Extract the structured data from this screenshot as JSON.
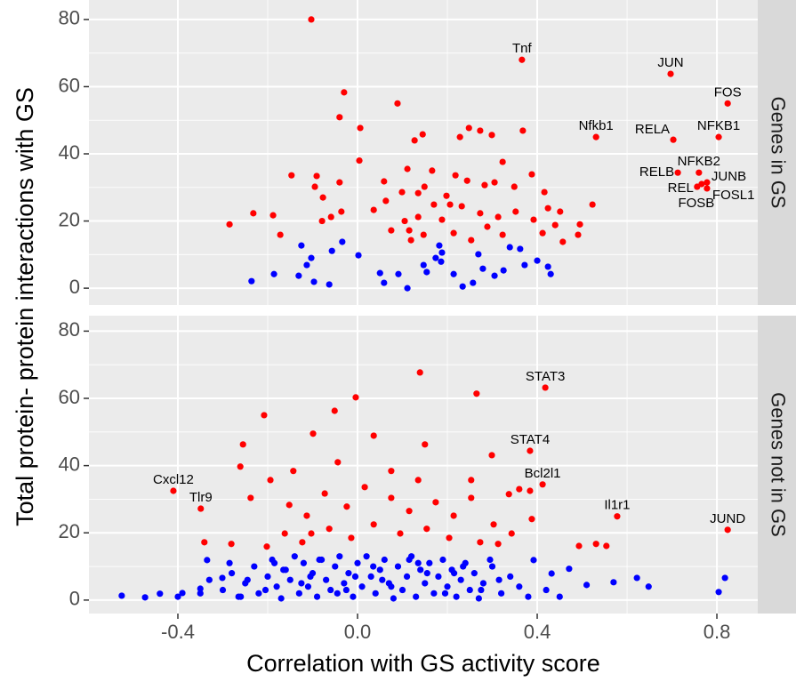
{
  "chart_data": {
    "type": "scatter",
    "xlabel": "Correlation with GS activity score",
    "ylabel": "Total protein- protein interactions with GS",
    "xlim": [
      -0.598,
      0.891
    ],
    "xticks": [
      -0.4,
      {
        "value": 0,
        "label": "0.0"
      },
      0.4,
      0.8
    ],
    "x_minor_grid": [
      -0.2,
      0.2,
      0.6
    ],
    "grid": true,
    "facets": [
      {
        "label": "Genes in GS",
        "ylim": [
          -5,
          85.8
        ],
        "yticks": [
          0,
          20,
          40,
          60,
          80
        ],
        "y_minor_grid": [
          10,
          30,
          50,
          70
        ],
        "series": [
          {
            "color": "#ff0000",
            "x": [
              0.366,
              0.697,
              0.824,
              0.531,
              0.703,
              0.804,
              0.713,
              0.76,
              0.778,
              0.756,
              0.778,
              0.766,
              -0.103,
              -0.03,
              0.089,
              -0.04,
              0.006,
              0.145,
              0.248,
              0.273,
              0.299,
              0.368,
              0.228,
              0.127,
              -0.091,
              -0.147,
              0.004,
              -0.04,
              -0.095,
              -0.232,
              -0.188,
              -0.172,
              -0.285,
              -0.077,
              -0.059,
              -0.036,
              -0.079,
              0.059,
              0.111,
              0.166,
              0.218,
              0.244,
              0.283,
              0.305,
              0.349,
              0.388,
              0.416,
              0.424,
              0.451,
              0.44,
              0.457,
              0.495,
              0.491,
              0.523,
              0.063,
              0.099,
              0.135,
              0.17,
              0.206,
              0.135,
              0.188,
              0.232,
              0.273,
              0.313,
              0.352,
              0.392,
              0.105,
              0.075,
              0.119,
              0.147,
              0.214,
              0.253,
              0.289,
              0.323,
              0.412,
              0.115,
              0.198,
              0.036,
              0.149,
              0.323
            ],
            "values": [
              68,
              63.8,
              55,
              45,
              44.2,
              45,
              34.4,
              34.4,
              31.5,
              30.2,
              29.7,
              31,
              80,
              58.3,
              55,
              50.9,
              47.7,
              45.8,
              47.7,
              46.9,
              45.6,
              46.9,
              45,
              44,
              33.4,
              33.6,
              38,
              31.5,
              30.2,
              22.3,
              21.7,
              15.9,
              19,
              27,
              21.2,
              22.8,
              20,
              31.8,
              35.5,
              35,
              33.6,
              32,
              30.7,
              31.5,
              30.2,
              33.9,
              28.6,
              23.8,
              22.8,
              18.8,
              13.8,
              19,
              15.9,
              24.9,
              26,
              28.6,
              28.3,
              24.9,
              24.9,
              21.2,
              20.4,
              24.4,
              22.3,
              21.2,
              22.8,
              20.4,
              20,
              17.2,
              14.3,
              15.9,
              16.4,
              14.3,
              18.3,
              15.9,
              16.4,
              17.2,
              27.5,
              23.3,
              30.2,
              37.6
            ],
            "labels": [
              "Tnf",
              "JUN",
              "FOS",
              "Nfkb1",
              "RELA",
              "NFKB1",
              "RELB",
              "NFKB2",
              "JUNB",
              "REL",
              "FOSL1",
              "FOSB",
              null,
              null,
              null,
              null,
              null,
              null,
              null,
              null,
              null,
              null,
              null,
              null,
              null,
              null,
              null,
              null,
              null,
              null,
              null,
              null,
              null,
              null,
              null,
              null,
              null,
              null,
              null,
              null,
              null,
              null,
              null,
              null,
              null,
              null,
              null,
              null,
              null,
              null,
              null,
              null,
              null,
              null,
              null,
              null,
              null,
              null,
              null,
              null,
              null,
              null,
              null,
              null,
              null,
              null,
              null,
              null,
              null,
              null,
              null,
              null,
              null,
              null,
              null,
              null,
              null,
              null,
              null,
              null
            ]
          },
          {
            "color": "#0000ff",
            "x": [
              -0.236,
              -0.186,
              -0.125,
              -0.113,
              -0.097,
              -0.131,
              -0.063,
              -0.057,
              -0.034,
              0.002,
              0.05,
              0.059,
              0.091,
              0.111,
              0.147,
              0.154,
              0.174,
              0.188,
              0.186,
              0.182,
              0.214,
              0.257,
              0.269,
              0.279,
              0.305,
              0.325,
              0.339,
              0.362,
              0.4,
              0.424,
              0.43,
              0.234,
              0.372,
              -0.103
            ],
            "values": [
              2.1,
              4.2,
              12.7,
              6.9,
              1.9,
              3.7,
              1.1,
              11.1,
              13.8,
              9.8,
              4.5,
              1.6,
              4.2,
              0,
              6.9,
              4.8,
              9,
              10.6,
              7.9,
              12.7,
              4.2,
              1.6,
              10.1,
              5.8,
              3.7,
              5.3,
              12.2,
              11.7,
              8.2,
              6.4,
              4.2,
              0.5,
              6.9,
              9
            ]
          }
        ]
      },
      {
        "label": "Genes not in GS",
        "ylim": [
          -4,
          84.6
        ],
        "yticks": [
          0,
          20,
          40,
          60,
          80
        ],
        "y_minor_grid": [
          10,
          30,
          50,
          70
        ],
        "series": [
          {
            "color": "#ff0000",
            "x": [
              -0.41,
              -0.349,
              0.418,
              0.384,
              0.412,
              0.578,
              0.824,
              0.139,
              0.265,
              -0.004,
              -0.208,
              -0.051,
              -0.255,
              -0.099,
              0.036,
              0.15,
              0.299,
              -0.261,
              -0.143,
              -0.194,
              -0.238,
              0.253,
              0.36,
              0.384,
              0.337,
              0.388,
              0.493,
              0.531,
              0.554,
              -0.341,
              -0.281,
              -0.152,
              -0.113,
              -0.073,
              -0.024,
              0.016,
              0.075,
              0.115,
              0.174,
              0.214,
              0.253,
              0.303,
              0.343,
              -0.162,
              -0.202,
              -0.123,
              -0.063,
              -0.014,
              0.036,
              0.095,
              0.154,
              0.204,
              0.273,
              0.313,
              0.075,
              0.135,
              -0.044,
              -0.103
            ],
            "values": [
              32.5,
              27.2,
              63.2,
              44.4,
              34.4,
              24.9,
              20.9,
              67.7,
              61.4,
              60.3,
              55,
              56.3,
              46.3,
              49.5,
              48.9,
              46.3,
              43.1,
              39.7,
              38.4,
              35.7,
              30.4,
              35.7,
              33,
              32.5,
              31.5,
              24.1,
              16.1,
              16.7,
              16.1,
              17.2,
              16.7,
              28.3,
              25.1,
              31.7,
              27.8,
              33.6,
              30.4,
              26.5,
              29.1,
              25.1,
              30.4,
              22.5,
              19.8,
              19.8,
              15.9,
              17.2,
              21.2,
              18.5,
              22.5,
              19.8,
              21.2,
              18.5,
              17.2,
              16.7,
              38.4,
              35.7,
              41,
              19.8
            ],
            "labels": [
              "Cxcl12",
              "Tlr9",
              "STAT3",
              "STAT4",
              "Bcl2l1",
              "Il1r1",
              "JUND",
              null,
              null,
              null,
              null,
              null,
              null,
              null,
              null,
              null,
              null,
              null,
              null,
              null,
              null,
              null,
              null,
              null,
              null,
              null,
              null,
              null,
              null,
              null,
              null,
              null,
              null,
              null,
              null,
              null,
              null,
              null,
              null,
              null,
              null,
              null,
              null,
              null,
              null,
              null,
              null,
              null,
              null,
              null,
              null,
              null,
              null,
              null,
              null,
              null,
              null,
              null
            ]
          },
          {
            "color": "#0000ff",
            "x": [
              -0.525,
              -0.473,
              -0.44,
              -0.39,
              -0.35,
              -0.335,
              -0.301,
              0.804,
              0.818,
              0.648,
              0.622,
              0.57,
              0.51,
              0.471,
              0.432,
              0.392,
              -0.3,
              -0.28,
              -0.26,
              -0.25,
              -0.23,
              -0.22,
              -0.2,
              -0.19,
              -0.18,
              -0.17,
              -0.16,
              -0.15,
              -0.14,
              -0.13,
              -0.12,
              -0.11,
              -0.1,
              -0.09,
              -0.08,
              -0.07,
              -0.06,
              -0.05,
              -0.04,
              -0.03,
              -0.02,
              -0.01,
              0,
              0.01,
              0.02,
              0.03,
              0.04,
              0.05,
              0.06,
              0.07,
              0.08,
              0.09,
              0.1,
              0.11,
              0.12,
              0.13,
              0.14,
              0.15,
              0.16,
              0.17,
              0.18,
              0.19,
              0.2,
              0.21,
              0.22,
              0.23,
              0.24,
              0.25,
              0.26,
              0.27,
              0.28,
              0.3,
              0.32,
              0.34,
              0.36,
              0.38,
              -0.35,
              -0.33,
              -0.4,
              0.42,
              0.45,
              -0.285,
              -0.245,
              -0.205,
              -0.165,
              -0.125,
              -0.085,
              -0.045,
              -0.005,
              0.035,
              0.075,
              0.115,
              0.155,
              0.195,
              0.235,
              0.275,
              0.315,
              -0.265,
              -0.185,
              -0.105,
              -0.025,
              0.055,
              0.135,
              0.215,
              0.295
            ],
            "values": [
              1.3,
              0.8,
              1.9,
              2.1,
              3.4,
              11.9,
              6.6,
              2.4,
              6.6,
              4,
              6.6,
              5.3,
              4.5,
              9.3,
              7.9,
              11.9,
              3,
              8,
              1,
              5,
              10,
              2,
              7,
              12,
              4,
              0.5,
              9,
              6,
              13,
              2,
              11,
              4,
              8,
              1,
              12,
              6,
              3,
              10,
              13,
              5,
              8,
              1,
              11,
              4,
              13,
              7,
              2,
              9,
              12,
              5,
              0.5,
              10,
              3,
              7,
              13,
              1,
              9,
              5,
              11,
              2,
              7,
              12,
              4,
              9,
              1,
              6,
              11,
              3,
              8,
              0.5,
              5,
              10,
              2,
              7,
              4,
              1,
              2,
              6,
              1,
              3,
              1,
              11,
              6,
              3,
              9,
              5,
              12,
              2,
              7,
              10,
              4,
              12,
              8,
              2,
              10,
              3,
              6,
              1,
              11,
              7,
              3,
              6,
              11,
              8,
              12
            ]
          }
        ]
      }
    ]
  }
}
